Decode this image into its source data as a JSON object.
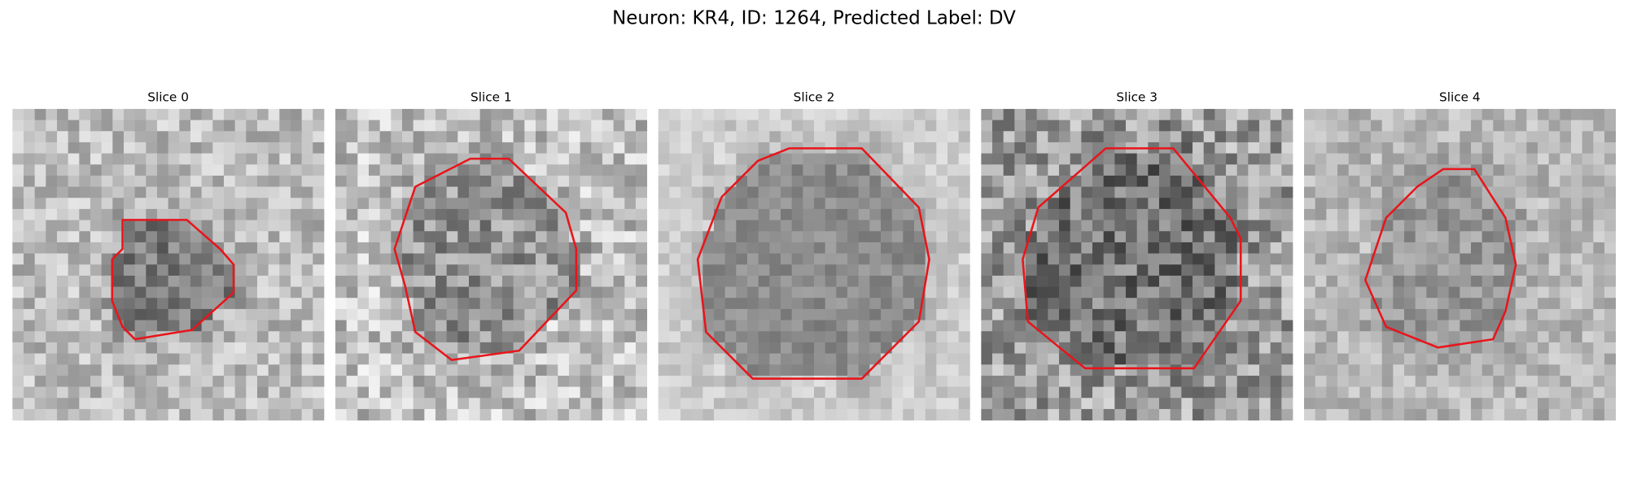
{
  "title": "Neuron: KR4, ID: 1264, Predicted Label: DV",
  "panels": [
    {
      "title": "Slice 0"
    },
    {
      "title": "Slice 1"
    },
    {
      "title": "Slice 2"
    },
    {
      "title": "Slice 3"
    },
    {
      "title": "Slice 4"
    }
  ]
}
